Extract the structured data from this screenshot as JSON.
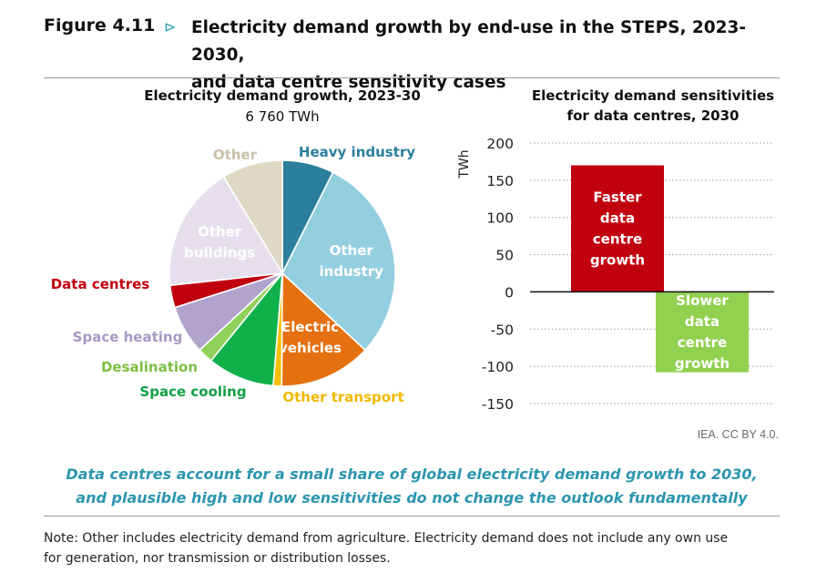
{
  "figure": {
    "number": "Figure 4.11",
    "arrow": "⊳",
    "title_line1": "Electricity demand growth by end-use in the STEPS, 2023-2030,",
    "title_line2": "and data centre sensitivity cases"
  },
  "credit": "IEA. CC BY 4.0.",
  "caption": {
    "line1": "Data centres account for a small share of global electricity demand growth to 2030,",
    "line2": "and plausible high and low sensitivities do not change the outlook fundamentally"
  },
  "note": {
    "line1": "Note: Other includes electricity demand from agriculture. Electricity demand does not include any own use",
    "line2": "for generation, nor transmission or distribution losses."
  },
  "chart_data": [
    {
      "type": "pie",
      "title": "Electricity demand growth, 2023-30",
      "subtitle": "6 760 TWh",
      "slices": [
        {
          "label": "Heavy industry",
          "lines": [
            "Heavy industry"
          ],
          "value": 7.4,
          "color": "#2b7f9c",
          "label_color": "#2b7f9c",
          "label_inside": false
        },
        {
          "label": "Other industry",
          "lines": [
            "Other",
            "industry"
          ],
          "value": 29.5,
          "color": "#94cfe0",
          "label_color": "#ffffff",
          "label_inside": true
        },
        {
          "label": "Electric vehicles",
          "lines": [
            "Electric",
            "vehicles"
          ],
          "value": 13.2,
          "color": "#e5700f",
          "label_color": "#ffffff",
          "label_inside": true
        },
        {
          "label": "Other transport",
          "lines": [
            "Other transport"
          ],
          "value": 1.2,
          "color": "#f5c000",
          "label_color": "#f2b800",
          "label_inside": false
        },
        {
          "label": "Space cooling",
          "lines": [
            "Space cooling"
          ],
          "value": 9.6,
          "color": "#10b14b",
          "label_color": "#10a045",
          "label_inside": false
        },
        {
          "label": "Desalination",
          "lines": [
            "Desalination"
          ],
          "value": 2.2,
          "color": "#8fd15a",
          "label_color": "#7cc043",
          "label_inside": false
        },
        {
          "label": "Space heating",
          "lines": [
            "Space heating"
          ],
          "value": 7.0,
          "color": "#b2a3cc",
          "label_color": "#a898c4",
          "label_inside": false
        },
        {
          "label": "Data centres",
          "lines": [
            "Data centres"
          ],
          "value": 3.2,
          "color": "#c1000f",
          "label_color": "#c1000f",
          "label_inside": false
        },
        {
          "label": "Other buildings",
          "lines": [
            "Other",
            "buildings"
          ],
          "value": 18.0,
          "color": "#e6e0ee",
          "label_color": "#ffffff",
          "label_inside": true
        },
        {
          "label": "Other",
          "lines": [
            "Other"
          ],
          "value": 8.7,
          "color": "#ded8c4",
          "label_color": "#c9c0a8",
          "label_inside": false
        }
      ]
    },
    {
      "type": "bar",
      "title_line1": "Electricity demand sensitivities",
      "title_line2": "for data centres, 2030",
      "ylabel": "TWh",
      "ylim": [
        -150,
        200
      ],
      "yticks": [
        200,
        150,
        100,
        50,
        0,
        -50,
        -100,
        -150
      ],
      "ytick_labels": [
        "200",
        "150",
        "100",
        "50",
        "0",
        "-50",
        "-100",
        "-150"
      ],
      "grid": "horizontal dotted",
      "bars": [
        {
          "label": "Faster data centre growth",
          "lines": [
            "Faster",
            "data",
            "centre",
            "growth"
          ],
          "value": 170,
          "color": "#c1000f",
          "label_color": "#ffffff"
        },
        {
          "label": "Slower data centre growth",
          "lines": [
            "Slower",
            "data",
            "centre",
            "growth"
          ],
          "value": -108,
          "color": "#92d050",
          "label_color": "#ffffff"
        }
      ]
    }
  ]
}
